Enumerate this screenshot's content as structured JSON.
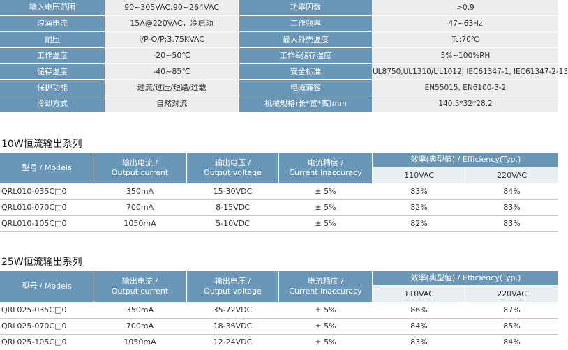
{
  "spec_rows": [
    {
      "l1": "输入电压范围",
      "v1": "90~305VAC;90~264VAC",
      "l2": "功率因数",
      "v2": ">0.9"
    },
    {
      "l1": "浪涌电流",
      "v1": "15A@220VAC，冷启动",
      "l2": "工作频率",
      "v2": "47~63Hz"
    },
    {
      "l1": "耐压",
      "v1": "I/P-O/P:3.75KVAC",
      "l2": "最大外壳温度",
      "v2": "Tc:70℃"
    },
    {
      "l1": "工作温度",
      "v1": "-20~50℃",
      "l2": "工作&储存湿度",
      "v2": "5%~100%RH"
    },
    {
      "l1": "储存温度",
      "v1": "-40~85℃",
      "l2": "安全标准",
      "v2": "UL8750,UL1310/UL1012, IEC61347-1, IEC61347-2-13"
    },
    {
      "l1": "保护功能",
      "v1": "过流/过压/短路/过载",
      "l2": "电磁兼容",
      "v2": "EN55015, EN6100-3-2"
    },
    {
      "l1": "冷却方式",
      "v1": "自然对流",
      "l2": "机械规格(长*宽*高)mm",
      "v2": "140.5*32*28.2"
    }
  ],
  "headers": {
    "model": "型号 / Models",
    "current_cn": "输出电流 /",
    "current_en": "Output current",
    "voltage_cn": "输出电压 /",
    "voltage_en": "Output voltage",
    "accuracy_cn": "电流精度 /",
    "accuracy_en": "Current inaccuracy",
    "efficiency": "效率(典型值) / Efficiency(Typ.)",
    "eff_110": "110VAC",
    "eff_220": "220VAC"
  },
  "series": [
    {
      "title": "10W恒流输出系列",
      "rows": [
        {
          "model": "QRL010-035C□0",
          "current": "350mA",
          "voltage": "15-30VDC",
          "accuracy": "± 5%",
          "eff110": "83%",
          "eff220": "84%"
        },
        {
          "model": "QRL010-070C□0",
          "current": "700mA",
          "voltage": "8-15VDC",
          "accuracy": "± 5%",
          "eff110": "82%",
          "eff220": "83%"
        },
        {
          "model": "QRL010-105C□0",
          "current": "1050mA",
          "voltage": "5-10VDC",
          "accuracy": "± 5%",
          "eff110": "82%",
          "eff220": "83%"
        }
      ]
    },
    {
      "title": "25W恒流输出系列",
      "rows": [
        {
          "model": "QRL025-035C□0",
          "current": "350mA",
          "voltage": "35-72VDC",
          "accuracy": "± 5%",
          "eff110": "86%",
          "eff220": "87%"
        },
        {
          "model": "QRL025-070C□0",
          "current": "700mA",
          "voltage": "18-36VDC",
          "accuracy": "± 5%",
          "eff110": "84%",
          "eff220": "85%"
        },
        {
          "model": "QRL025-105C□0",
          "current": "1050mA",
          "voltage": "12-24VDC",
          "accuracy": "± 5%",
          "eff110": "83%",
          "eff220": "84%"
        }
      ]
    }
  ]
}
